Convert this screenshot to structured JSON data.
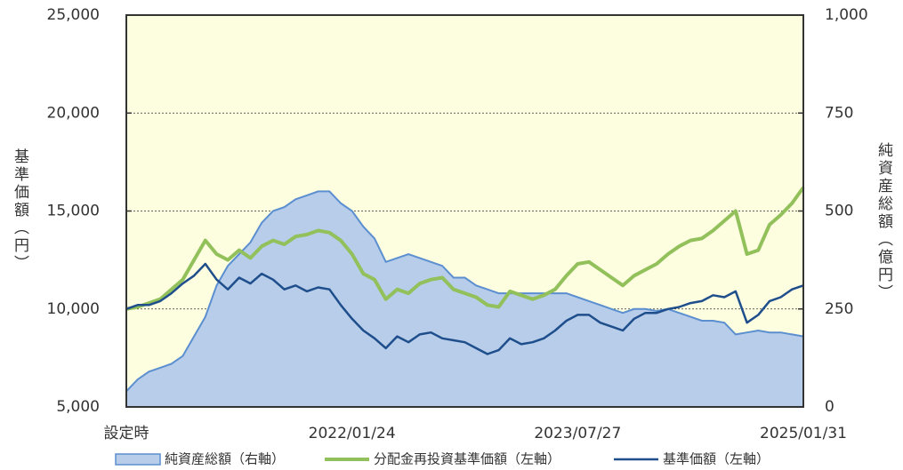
{
  "chart_data": {
    "type": "line",
    "y_label": "基準価額（円）",
    "y2_label": "純資産総額（億円）",
    "categories": [
      "設定時",
      null,
      null,
      null,
      null,
      null,
      null,
      null,
      null,
      null,
      null,
      null,
      null,
      null,
      null,
      null,
      null,
      null,
      null,
      null,
      "2022/01/24",
      null,
      null,
      null,
      null,
      null,
      null,
      null,
      null,
      null,
      null,
      null,
      null,
      null,
      null,
      null,
      null,
      null,
      null,
      null,
      "2023/07/27",
      null,
      null,
      null,
      null,
      null,
      null,
      null,
      null,
      null,
      null,
      null,
      null,
      null,
      null,
      null,
      null,
      null,
      null,
      null,
      "2025/01/31"
    ],
    "series": [
      {
        "name": "純資産総額（右軸）",
        "kind": "area",
        "axis": "y2",
        "color": "#5b8fd0",
        "fill": "#b7cde9",
        "values": [
          40,
          70,
          90,
          100,
          110,
          130,
          180,
          230,
          310,
          360,
          390,
          420,
          470,
          500,
          510,
          530,
          540,
          550,
          550,
          520,
          500,
          460,
          430,
          370,
          380,
          390,
          380,
          370,
          360,
          330,
          330,
          310,
          300,
          290,
          290,
          290,
          290,
          290,
          290,
          290,
          280,
          270,
          260,
          250,
          240,
          250,
          250,
          245,
          250,
          240,
          230,
          220,
          220,
          215,
          185,
          190,
          195,
          190,
          190,
          185,
          180
        ]
      },
      {
        "name": "分配金再投資基準価額（左軸）",
        "kind": "line",
        "color": "#92c05a",
        "width": 4,
        "values": [
          10000,
          10100,
          10300,
          10500,
          11000,
          11500,
          12500,
          13500,
          12800,
          12500,
          13000,
          12600,
          13200,
          13500,
          13300,
          13700,
          13800,
          14000,
          13900,
          13500,
          12800,
          11800,
          11500,
          10500,
          11000,
          10800,
          11300,
          11500,
          11600,
          11000,
          10800,
          10600,
          10200,
          10100,
          10900,
          10700,
          10500,
          10700,
          11000,
          11700,
          12300,
          12400,
          12000,
          11600,
          11200,
          11700,
          12000,
          12300,
          12800,
          13200,
          13500,
          13600,
          14000,
          14500,
          15000,
          12800,
          13000,
          14300,
          14800,
          15400,
          16200
        ]
      },
      {
        "name": "基準価額（左軸）",
        "kind": "line",
        "color": "#1f4e8c",
        "width": 2.5,
        "values": [
          10000,
          10200,
          10200,
          10400,
          10800,
          11300,
          11700,
          12300,
          11500,
          11000,
          11600,
          11300,
          11800,
          11500,
          11000,
          11200,
          10900,
          11100,
          11000,
          10200,
          9500,
          8900,
          8500,
          8000,
          8600,
          8300,
          8700,
          8800,
          8500,
          8400,
          8300,
          8000,
          7700,
          7900,
          8500,
          8200,
          8300,
          8500,
          8900,
          9400,
          9700,
          9700,
          9300,
          9100,
          8900,
          9500,
          9800,
          9800,
          10000,
          10100,
          10300,
          10400,
          10700,
          10600,
          10900,
          9300,
          9700,
          10400,
          10600,
          11000,
          11200
        ]
      }
    ],
    "ylim": [
      5000,
      25000
    ],
    "yticks": [
      {
        "value": 5000,
        "label": "5,000"
      },
      {
        "value": 10000,
        "label": "10,000"
      },
      {
        "value": 15000,
        "label": "15,000"
      },
      {
        "value": 20000,
        "label": "20,000"
      },
      {
        "value": 25000,
        "label": "25,000"
      }
    ],
    "y2lim": [
      0,
      1000
    ],
    "y2ticks": [
      0,
      250,
      500,
      750,
      {
        "value": 1000,
        "label": "1,000"
      }
    ],
    "grid": true,
    "plot_background": "#fdfde0",
    "legend": "bottom"
  }
}
